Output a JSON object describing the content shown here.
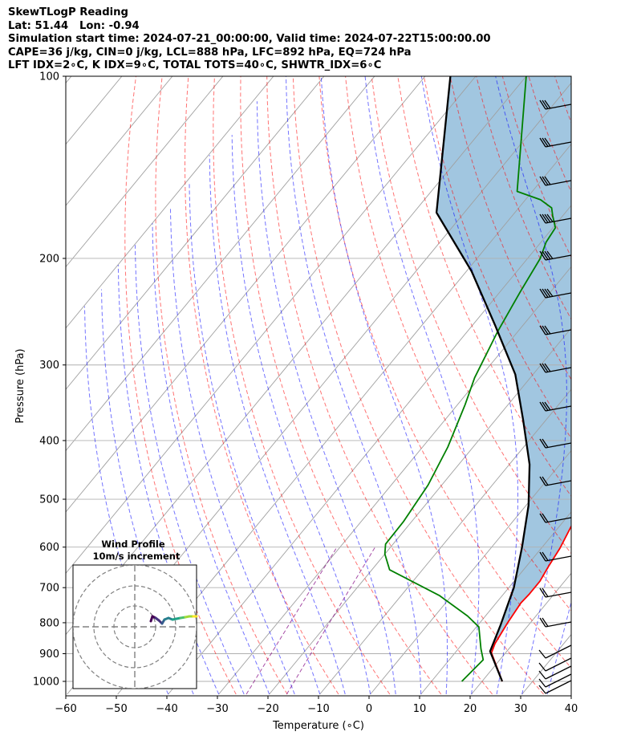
{
  "header": {
    "lines": [
      "SkewTLogP Reading",
      "Lat: 51.44   Lon: -0.94",
      "Simulation start time: 2024-07-21_00:00:00, Valid time: 2024-07-22T15:00:00.00",
      "CAPE=36 j/kg, CIN=0 j/kg, LCL=888 hPa, LFC=892 hPa, EQ=724 hPa",
      "LFT IDX=2∘C, K IDX=9∘C, TOTAL TOTS=40∘C, SHWTR_IDX=6∘C"
    ]
  },
  "colors": {
    "temperature": "#ff0000",
    "dewpoint": "#008000",
    "parcel": "#000000",
    "cape_fill": "#1f77b4",
    "dry_adiabat": "#ff0000",
    "moist_adiabat": "#0000ff",
    "mixing_ratio": "#800080",
    "isotherm": "#a0a0a0"
  },
  "chart_data": {
    "type": "line",
    "subtype": "skew-t log-p",
    "xlabel": "Temperature (∘C)",
    "ylabel": "Pressure (hPa)",
    "xlim": [
      -60,
      40
    ],
    "ylim": [
      1050,
      100
    ],
    "y_scale": "log",
    "grid": true,
    "x_ticks": [
      "−60",
      "−50",
      "−40",
      "−30",
      "−20",
      "−10",
      "0",
      "10",
      "20",
      "30",
      "40"
    ],
    "y_ticks": [
      "100",
      "200",
      "300",
      "400",
      "500",
      "600",
      "700",
      "800",
      "900",
      "1000"
    ],
    "series": [
      {
        "key": "temperature",
        "x": [
          24,
          17.2,
          16.4,
          15.5,
          14.9,
          15.1,
          15.1,
          14.4,
          13.7,
          12.3,
          8.0,
          2.1,
          -3.5,
          -8.5,
          -12.6,
          -16.7,
          -20.6,
          -23.4,
          -24.4,
          -24.3,
          -24.2,
          -24.5,
          -24.0,
          -23.9,
          -20.5,
          -11.0,
          -1.1
        ],
        "y": [
          1000,
          897,
          866,
          800,
          742,
          717,
          683,
          646,
          603,
          553,
          491,
          432,
          381,
          332,
          289,
          262,
          242,
          227,
          210,
          200,
          190,
          181,
          171,
          163,
          155,
          130,
          100
        ]
      },
      {
        "key": "dewpoint",
        "x": [
          16,
          16.7,
          14.5,
          10.5,
          6.5,
          -2.5,
          -16.5,
          -20.0,
          -21.5,
          -21.6,
          -22.7,
          -25.0,
          -28.5,
          -31.0,
          -34.0,
          -36.0,
          -37.5,
          -39.0,
          -39.5,
          -42.0,
          -43.5,
          -47.0,
          -53.0,
          -70.0
        ],
        "y": [
          1000,
          921,
          884,
          813,
          780,
          721,
          654,
          616,
          593,
          545,
          474,
          410,
          349,
          315,
          264,
          227,
          200,
          188,
          178,
          170,
          165,
          160,
          155,
          100
        ]
      },
      {
        "key": "parcel",
        "x": [
          24.0,
          16.7,
          14.5,
          11.0,
          6.0,
          0.5,
          -6.0,
          -14.5,
          -23.5,
          -35.5,
          -49.0,
          -65.5,
          -85.0
        ],
        "y": [
          1000,
          892,
          808,
          700,
          600,
          512,
          438,
          370,
          311,
          258,
          210,
          168,
          100
        ]
      }
    ],
    "inset": {
      "title": "Wind Profile",
      "subtitle": "10m/s increment"
    }
  }
}
